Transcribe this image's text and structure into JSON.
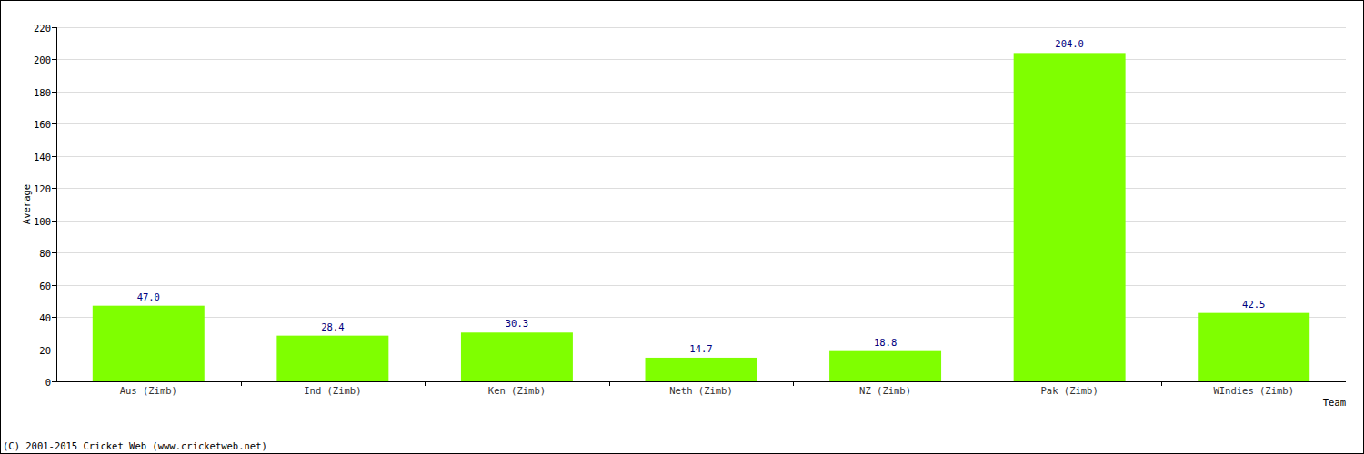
{
  "chart_data": {
    "type": "bar",
    "x_label": "Team",
    "y_label": "Average",
    "annotations": [
      "(C) 2001-2015 Cricket Web (www.cricketweb.net)"
    ],
    "categories": [
      "Aus (Zimb)",
      "Ind (Zimb)",
      "Ken (Zimb)",
      "Neth (Zimb)",
      "NZ (Zimb)",
      "Pak (Zimb)",
      "WIndies (Zimb)"
    ],
    "values": [
      47.0,
      28.4,
      30.3,
      14.7,
      18.8,
      204.0,
      42.5
    ],
    "value_labels": [
      "47.0",
      "28.4",
      "30.3",
      "14.7",
      "18.8",
      "204.0",
      "42.5"
    ],
    "data_labels": true,
    "color": "#7fff00",
    "ylim": [
      0,
      220
    ],
    "yticks": [
      0,
      20,
      40,
      60,
      80,
      100,
      120,
      140,
      160,
      180,
      200,
      220
    ],
    "grid": true
  }
}
